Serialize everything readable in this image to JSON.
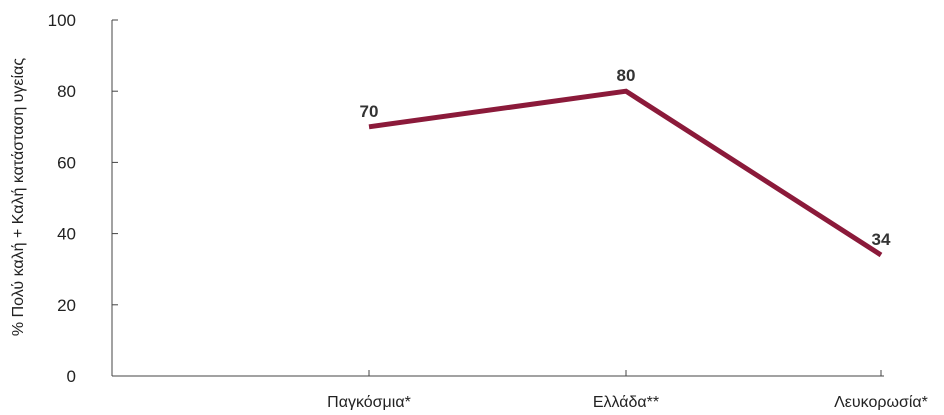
{
  "chart_data": {
    "type": "line",
    "title": "",
    "xlabel": "",
    "ylabel": "% Πολύ καλή + Καλή κατάσταση υγείας",
    "categories": [
      "Παγκόσμια*",
      "Ελλάδα**",
      "Λευκορωσία*"
    ],
    "series": [
      {
        "values": [
          70,
          80,
          34
        ],
        "color": "#8b1a3a"
      }
    ],
    "data_labels": [
      "70",
      "80",
      "34"
    ],
    "ylim": [
      0,
      100
    ],
    "yticks": [
      0,
      20,
      40,
      60,
      80,
      100
    ],
    "ytick_labels": [
      "0",
      "20",
      "40",
      "60",
      "80",
      "100"
    ],
    "grid": false,
    "legend": "none"
  }
}
